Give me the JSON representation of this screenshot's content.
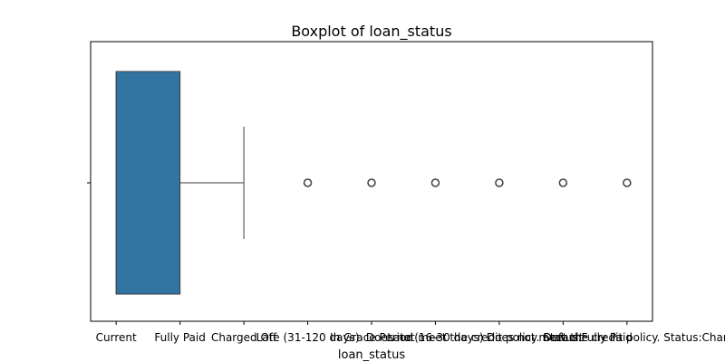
{
  "chart_data": {
    "type": "box",
    "title": "Boxplot of loan_status",
    "xlabel": "loan_status",
    "ylabel": "",
    "categories": [
      "Current",
      "Fully Paid",
      "Charged Off",
      "Late (31-120 days)",
      "In Grace Period",
      "Late (16-30 days)",
      "Does not meet the credit policy. Status:Fully Paid",
      "Default",
      "Does not meet the credit policy. Status:Charged Off"
    ],
    "xlim": [
      -0.4,
      8.4
    ],
    "box": {
      "q1": 0,
      "median": 0,
      "q3": 1,
      "whisker_low": 0,
      "whisker_high": 2
    },
    "outliers": [
      3,
      4,
      5,
      6,
      7,
      8
    ],
    "color": "#3274a1",
    "grid": false,
    "legend": "none"
  }
}
